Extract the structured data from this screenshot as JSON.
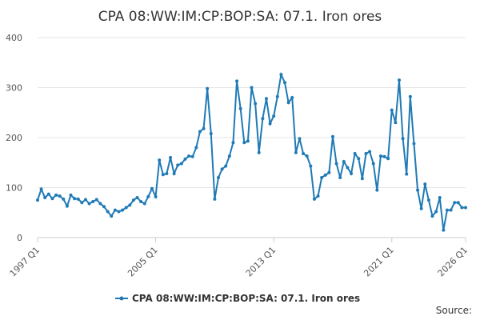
{
  "chart_data": {
    "type": "line",
    "title": "CPA 08:WW:IM:CP:BOP:SA: 07.1. Iron ores",
    "source": "Source:",
    "categories": [
      "1997 Q1",
      null,
      null,
      null,
      null,
      null,
      null,
      null,
      null,
      null,
      null,
      null,
      null,
      null,
      null,
      null,
      null,
      null,
      null,
      null,
      null,
      null,
      null,
      null,
      null,
      null,
      null,
      null,
      null,
      null,
      null,
      null,
      "2005 Q1",
      null,
      null,
      null,
      null,
      null,
      null,
      null,
      null,
      null,
      null,
      null,
      null,
      null,
      null,
      null,
      null,
      null,
      null,
      null,
      null,
      null,
      null,
      null,
      null,
      null,
      null,
      null,
      null,
      null,
      null,
      null,
      "2013 Q1",
      null,
      null,
      null,
      null,
      null,
      null,
      null,
      null,
      null,
      null,
      null,
      null,
      null,
      null,
      null,
      null,
      null,
      null,
      null,
      null,
      null,
      null,
      null,
      null,
      null,
      null,
      null,
      null,
      null,
      null,
      null,
      "2021 Q1",
      null,
      null,
      null,
      null,
      null,
      null,
      null,
      null,
      null,
      null,
      null,
      null,
      null,
      null,
      null,
      null,
      null,
      null,
      null,
      "2026 Q1"
    ],
    "series": [
      {
        "name": "CPA 08:WW:IM:CP:BOP:SA: 07.1. Iron ores",
        "color": "#1f7ab5",
        "values": [
          75,
          97,
          80,
          87,
          78,
          85,
          83,
          77,
          63,
          85,
          78,
          77,
          70,
          76,
          68,
          72,
          76,
          68,
          62,
          52,
          43,
          55,
          52,
          55,
          60,
          65,
          75,
          80,
          72,
          68,
          82,
          98,
          82,
          155,
          126,
          128,
          160,
          128,
          145,
          148,
          157,
          163,
          162,
          180,
          212,
          218,
          298,
          208,
          77,
          120,
          137,
          143,
          163,
          190,
          313,
          258,
          190,
          193,
          300,
          268,
          170,
          238,
          278,
          228,
          243,
          282,
          326,
          310,
          270,
          280,
          170,
          198,
          168,
          163,
          143,
          77,
          83,
          120,
          125,
          130,
          202,
          148,
          120,
          152,
          140,
          128,
          168,
          158,
          118,
          168,
          172,
          148,
          95,
          163,
          162,
          158,
          255,
          230,
          315,
          198,
          127,
          282,
          188,
          95,
          58,
          107,
          75,
          43,
          52,
          80,
          15,
          55,
          55,
          70,
          70,
          60,
          60
        ]
      }
    ],
    "ylim": [
      0,
      400
    ],
    "yticks": [
      0,
      100,
      200,
      300,
      400
    ],
    "grid": true,
    "legend": "bottom"
  }
}
